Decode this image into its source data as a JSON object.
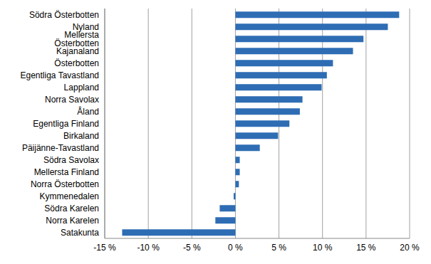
{
  "chart_data": {
    "type": "bar",
    "orientation": "horizontal",
    "categories": [
      "Södra Österbotten",
      "Nyland",
      "Mellersta Österbotten",
      "Kajanaland",
      "Österbotten",
      "Egentliga Tavastland",
      "Lappland",
      "Norra Savolax",
      "Åland",
      "Egentliga Finland",
      "Birkaland",
      "Päijänne-Tavastland",
      "Södra Savolax",
      "Mellersta Finland",
      "Norra Österbotten",
      "Kymmenedalen",
      "Södra Karelen",
      "Norra Karelen",
      "Satakunta"
    ],
    "values": [
      18.8,
      17.5,
      14.7,
      13.5,
      11.2,
      10.5,
      9.9,
      7.7,
      7.4,
      6.2,
      4.9,
      2.8,
      0.5,
      0.5,
      0.4,
      -0.2,
      -1.8,
      -2.3,
      -13.0
    ],
    "color": "#2e6db4",
    "xlim": [
      -15,
      20
    ],
    "xticks": [
      {
        "value": -15,
        "label": "-15 %"
      },
      {
        "value": -10,
        "label": "-10 %"
      },
      {
        "value": -5,
        "label": "-5 %"
      },
      {
        "value": 0,
        "label": "0 %"
      },
      {
        "value": 5,
        "label": "5 %"
      },
      {
        "value": 10,
        "label": "10 %"
      },
      {
        "value": 15,
        "label": "15 %"
      },
      {
        "value": 20,
        "label": "20 %"
      }
    ],
    "grid": true
  }
}
